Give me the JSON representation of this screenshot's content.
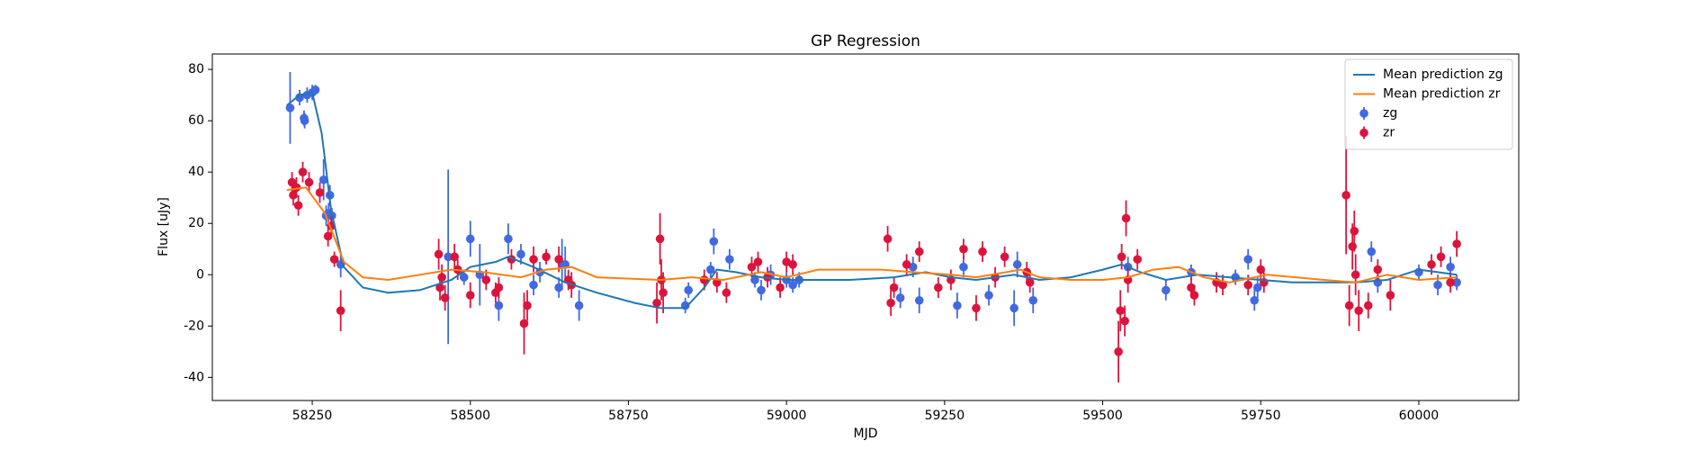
{
  "chart_data": {
    "type": "errorbar",
    "title": "GP Regression",
    "x_label": "MJD",
    "y_label": "Flux [uJy]",
    "xlim": [
      58092,
      60158
    ],
    "ylim": [
      -49,
      86
    ],
    "xticks": [
      58250,
      58500,
      58750,
      59000,
      59250,
      59500,
      59750,
      60000
    ],
    "yticks": [
      -40,
      -20,
      0,
      20,
      40,
      60,
      80
    ],
    "legend": "upper right",
    "series": [
      {
        "name": "Mean prediction zg",
        "style": "line",
        "color": "#1f77b4",
        "x": [
          58210,
          58230,
          58250,
          58265,
          58280,
          58300,
          58330,
          58370,
          58420,
          58470,
          58500,
          58540,
          58560,
          58600,
          58650,
          58700,
          58760,
          58800,
          58840,
          58870,
          58890,
          58920,
          58960,
          59000,
          59100,
          59170,
          59220,
          59260,
          59300,
          59360,
          59400,
          59450,
          59500,
          59530,
          59560,
          59600,
          59650,
          59700,
          59750,
          59800,
          59900,
          59950,
          60000,
          60030,
          60060
        ],
        "values": [
          66,
          70,
          71,
          55,
          25,
          3,
          -5,
          -7,
          -6,
          -2,
          3,
          5,
          7,
          3,
          -3,
          -7,
          -11,
          -13,
          -13,
          -5,
          2,
          1,
          -1,
          -2,
          -2,
          -1,
          1,
          -1,
          -2,
          0,
          -2,
          -1,
          2,
          4,
          1,
          -2,
          0,
          -1,
          -2,
          -3,
          -3,
          -2,
          2,
          1,
          0
        ]
      },
      {
        "name": "Mean prediction zr",
        "style": "line",
        "color": "#ff7f0e",
        "x": [
          58210,
          58240,
          58270,
          58300,
          58330,
          58370,
          58420,
          58470,
          58520,
          58580,
          58620,
          58660,
          58700,
          58800,
          58850,
          58900,
          58960,
          59000,
          59050,
          59150,
          59200,
          59260,
          59300,
          59370,
          59400,
          59450,
          59500,
          59540,
          59580,
          59620,
          59660,
          59700,
          59760,
          59850,
          59900,
          59950,
          60000,
          60060
        ],
        "values": [
          33,
          34,
          24,
          5,
          -1,
          -2,
          0,
          2,
          1,
          -1,
          2,
          3,
          -1,
          -2,
          -1,
          -2,
          1,
          -1,
          2,
          2,
          1,
          0,
          -1,
          2,
          -1,
          -2,
          -2,
          -1,
          2,
          3,
          -1,
          -3,
          0,
          -2,
          -3,
          0,
          -2,
          -1
        ]
      },
      {
        "name": "zg",
        "style": "errorbar",
        "color": "#4169e1",
        "x": [
          58215,
          58230,
          58237,
          58238,
          58242,
          58250,
          58255,
          58268,
          58272,
          58276,
          58278,
          58281,
          58295,
          58465,
          58490,
          58500,
          58515,
          58545,
          58560,
          58580,
          58600,
          58610,
          58640,
          58645,
          58650,
          58672,
          58840,
          58845,
          58880,
          58885,
          58910,
          58950,
          58960,
          58975,
          59000,
          59010,
          59020,
          59180,
          59200,
          59210,
          59270,
          59280,
          59320,
          59360,
          59365,
          59390,
          59540,
          59600,
          59640,
          59710,
          59730,
          59740,
          59745,
          59925,
          59935,
          60000,
          60030,
          60050,
          60060
        ],
        "values": [
          65,
          69,
          61,
          60,
          70,
          71,
          72,
          37,
          23,
          24,
          31,
          23,
          4,
          7,
          -1,
          14,
          0,
          -12,
          14,
          8,
          -4,
          1,
          -5,
          4,
          4,
          -12,
          -12,
          -6,
          2,
          13,
          6,
          -2,
          -6,
          0,
          -2,
          -4,
          -2,
          -9,
          3,
          -10,
          -12,
          3,
          -8,
          -13,
          4,
          -10,
          3,
          -6,
          1,
          -1,
          6,
          -10,
          -5,
          9,
          -3,
          1,
          -4,
          3,
          -3
        ],
        "errors": [
          14,
          3,
          3,
          3,
          3,
          3,
          2,
          8,
          4,
          4,
          4,
          3,
          5,
          34,
          3,
          7,
          12,
          6,
          6,
          4,
          4,
          4,
          4,
          10,
          7,
          6,
          3,
          3,
          3,
          5,
          4,
          3,
          4,
          4,
          3,
          3,
          3,
          4,
          4,
          5,
          5,
          4,
          4,
          7,
          5,
          5,
          4,
          4,
          3,
          3,
          4,
          4,
          4,
          4,
          4,
          3,
          4,
          4,
          3
        ]
      },
      {
        "name": "zr",
        "style": "errorbar",
        "color": "#dc143c",
        "x": [
          58218,
          58220,
          58225,
          58228,
          58235,
          58245,
          58262,
          58275,
          58280,
          58285,
          58295,
          58450,
          58452,
          58455,
          58460,
          58475,
          58480,
          58500,
          58525,
          58540,
          58545,
          58565,
          58585,
          58590,
          58600,
          58620,
          58640,
          58655,
          58660,
          58795,
          58800,
          58802,
          58805,
          58870,
          58890,
          58905,
          58945,
          58955,
          58970,
          58990,
          59000,
          59010,
          59160,
          59165,
          59170,
          59190,
          59210,
          59240,
          59260,
          59280,
          59300,
          59310,
          59330,
          59345,
          59380,
          59385,
          59525,
          59528,
          59530,
          59535,
          59537,
          59540,
          59555,
          59640,
          59645,
          59680,
          59690,
          59730,
          59750,
          59755,
          59885,
          59890,
          59895,
          59898,
          59900,
          59905,
          59920,
          59935,
          59955,
          60020,
          60035,
          60050,
          60060
        ],
        "values": [
          36,
          31,
          34,
          27,
          40,
          36,
          32,
          15,
          19,
          6,
          -14,
          8,
          -5,
          -1,
          -9,
          7,
          2,
          -8,
          -2,
          -7,
          -5,
          6,
          -19,
          -12,
          6,
          7,
          6,
          -2,
          -4,
          -11,
          14,
          -2,
          -7,
          -2,
          -3,
          -7,
          3,
          5,
          -1,
          -5,
          5,
          4,
          14,
          -11,
          -5,
          4,
          9,
          -5,
          -2,
          10,
          -13,
          9,
          -1,
          7,
          1,
          -3,
          -30,
          -14,
          7,
          -18,
          22,
          -2,
          6,
          -5,
          -8,
          -3,
          -4,
          -4,
          2,
          -3,
          31,
          -12,
          11,
          17,
          0,
          -14,
          -12,
          2,
          -8,
          4,
          7,
          -3,
          12
        ],
        "errors": [
          4,
          4,
          4,
          4,
          4,
          4,
          4,
          4,
          4,
          3,
          8,
          6,
          5,
          5,
          5,
          5,
          4,
          5,
          4,
          4,
          4,
          4,
          12,
          6,
          5,
          3,
          5,
          4,
          5,
          8,
          10,
          8,
          8,
          4,
          4,
          4,
          4,
          4,
          4,
          4,
          4,
          4,
          5,
          5,
          4,
          4,
          4,
          4,
          4,
          4,
          5,
          4,
          4,
          4,
          4,
          4,
          12,
          8,
          5,
          6,
          7,
          5,
          4,
          4,
          4,
          4,
          4,
          4,
          4,
          4,
          23,
          8,
          9,
          8,
          8,
          8,
          5,
          4,
          6,
          4,
          4,
          4,
          5
        ]
      }
    ]
  }
}
